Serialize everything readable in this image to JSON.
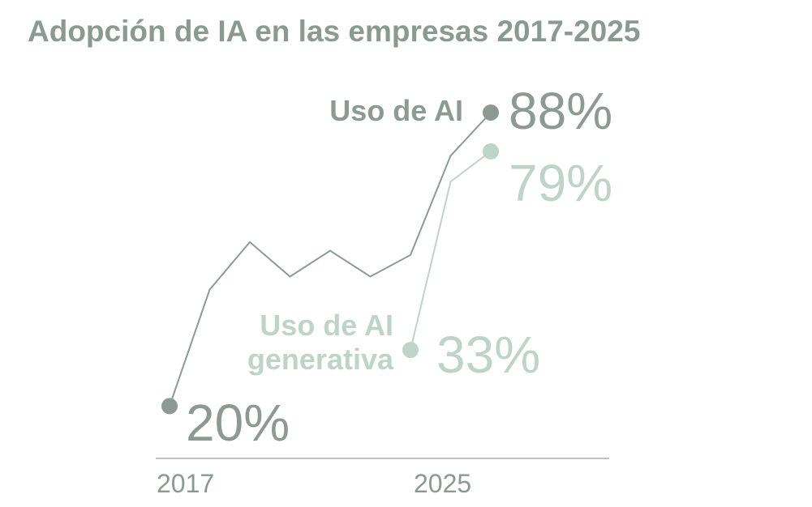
{
  "title": "Adopción de IA en las empresas 2017-2025",
  "colors": {
    "title": "#8a9a92",
    "series_ai": "#8d9a94",
    "series_genai": "#bfd4c8",
    "axis": "#a8b0ad",
    "tick": "#8a9a92"
  },
  "chart_data": {
    "type": "line",
    "title": "Adopción de IA en las empresas 2017-2025",
    "xlabel": "",
    "ylabel": "",
    "x": [
      2017,
      2018,
      2019,
      2020,
      2021,
      2022,
      2023,
      2024,
      2025
    ],
    "ylim": [
      0,
      100
    ],
    "grid": false,
    "series": [
      {
        "name": "Uso de AI",
        "label": "Uso de AI",
        "x": [
          2017,
          2018,
          2019,
          2020,
          2021,
          2022,
          2023,
          2024,
          2025
        ],
        "values": [
          20,
          47,
          58,
          50,
          56,
          50,
          55,
          78,
          88
        ],
        "start_label": "20%",
        "end_label": "88%"
      },
      {
        "name": "Uso de AI generativa",
        "label_lines": [
          "Uso de AI",
          "generativa"
        ],
        "x": [
          2023,
          2024,
          2025
        ],
        "values": [
          33,
          72,
          79
        ],
        "start_label": "33%",
        "end_label": "79%"
      }
    ],
    "x_tick_labels": [
      "2017",
      "2025"
    ]
  }
}
